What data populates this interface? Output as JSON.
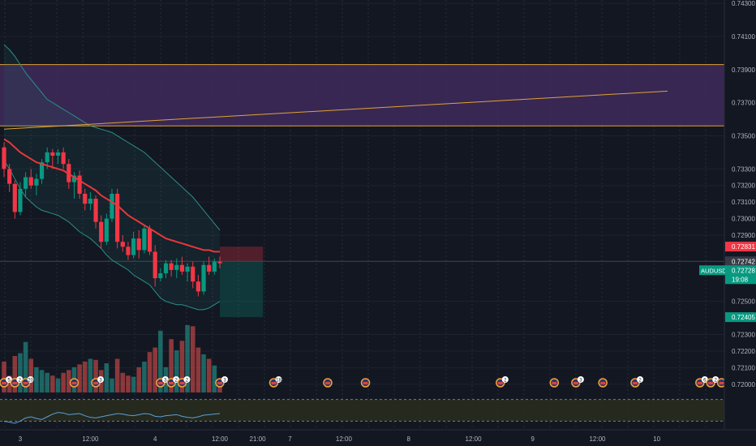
{
  "chart_data": {
    "type": "candlestick",
    "symbol": "AUDUSD",
    "title": "",
    "price_axis": {
      "ylim": [
        0.7195,
        0.7432
      ],
      "ticks": [
        "0.74300",
        "0.74100",
        "0.73900",
        "0.73700",
        "0.73500",
        "0.73300",
        "0.73200",
        "0.73100",
        "0.73000",
        "0.72900",
        "0.72500",
        "0.72300",
        "0.72200",
        "0.72100",
        "0.72000"
      ]
    },
    "time_axis": {
      "labels": [
        "3",
        "12:00",
        "4",
        "12:00",
        "21:00",
        "7",
        "12:00",
        "8",
        "12:00",
        "9",
        "12:00",
        "10"
      ],
      "label_index": [
        3,
        16,
        28,
        40,
        47,
        53,
        63,
        75,
        87,
        98,
        110,
        121
      ]
    },
    "price_badges": [
      {
        "label": "",
        "value": "0.72831",
        "color": "#f23645"
      },
      {
        "label": "",
        "value": "0.72742",
        "color": "#363a45"
      },
      {
        "label": "AUDUSD",
        "value": "0.72728",
        "color": "#089981"
      },
      {
        "label": "",
        "value": "19:08",
        "color": "#089981"
      },
      {
        "label": "",
        "value": "0.72405",
        "color": "#089981"
      }
    ],
    "zone": {
      "top": 0.7393,
      "bottom": 0.7356,
      "color": "#3f2a5a"
    },
    "trendline": {
      "from": [
        0,
        0.7354
      ],
      "to": [
        123,
        0.7377
      ]
    },
    "position": {
      "start": 40,
      "end": 48,
      "entry": 0.72742,
      "stop": 0.72831,
      "target": 0.72405
    },
    "candles": [
      [
        0.7343,
        0.7346,
        0.7325,
        0.733
      ],
      [
        0.733,
        0.7333,
        0.7316,
        0.7321
      ],
      [
        0.7321,
        0.7323,
        0.73,
        0.7304
      ],
      [
        0.7304,
        0.7322,
        0.7302,
        0.7318
      ],
      [
        0.7318,
        0.7328,
        0.7313,
        0.7325
      ],
      [
        0.7325,
        0.733,
        0.7318,
        0.732
      ],
      [
        0.732,
        0.7327,
        0.7314,
        0.7324
      ],
      [
        0.7324,
        0.7336,
        0.7321,
        0.7334
      ],
      [
        0.7334,
        0.7343,
        0.733,
        0.734
      ],
      [
        0.734,
        0.7342,
        0.733,
        0.7338
      ],
      [
        0.7338,
        0.7342,
        0.7333,
        0.734
      ],
      [
        0.734,
        0.7343,
        0.733,
        0.7333
      ],
      [
        0.7333,
        0.7336,
        0.7318,
        0.7322
      ],
      [
        0.7322,
        0.7328,
        0.7312,
        0.7326
      ],
      [
        0.7326,
        0.7329,
        0.7312,
        0.7315
      ],
      [
        0.7315,
        0.7318,
        0.7305,
        0.7309
      ],
      [
        0.7309,
        0.7316,
        0.7305,
        0.7312
      ],
      [
        0.7312,
        0.7314,
        0.7294,
        0.7298
      ],
      [
        0.7298,
        0.7302,
        0.7282,
        0.7286
      ],
      [
        0.7286,
        0.7303,
        0.7284,
        0.73
      ],
      [
        0.73,
        0.7318,
        0.7298,
        0.7315
      ],
      [
        0.7315,
        0.7318,
        0.7282,
        0.7286
      ],
      [
        0.7286,
        0.729,
        0.728,
        0.7283
      ],
      [
        0.7283,
        0.7286,
        0.7275,
        0.7278
      ],
      [
        0.7278,
        0.7292,
        0.7276,
        0.7288
      ],
      [
        0.7288,
        0.7293,
        0.7276,
        0.7281
      ],
      [
        0.7281,
        0.7296,
        0.7279,
        0.7294
      ],
      [
        0.7294,
        0.7296,
        0.7278,
        0.728
      ],
      [
        0.728,
        0.7284,
        0.7259,
        0.7264
      ],
      [
        0.7264,
        0.727,
        0.7262,
        0.7267
      ],
      [
        0.7267,
        0.7275,
        0.7264,
        0.7273
      ],
      [
        0.7273,
        0.7275,
        0.7265,
        0.7269
      ],
      [
        0.7269,
        0.7276,
        0.7264,
        0.7272
      ],
      [
        0.7272,
        0.7277,
        0.7266,
        0.7268
      ],
      [
        0.7268,
        0.7273,
        0.7262,
        0.7271
      ],
      [
        0.7271,
        0.7274,
        0.7258,
        0.7262
      ],
      [
        0.7262,
        0.7266,
        0.7253,
        0.7256
      ],
      [
        0.7256,
        0.7274,
        0.7254,
        0.7272
      ],
      [
        0.7272,
        0.7277,
        0.7266,
        0.7268
      ],
      [
        0.7268,
        0.7276,
        0.7266,
        0.7274
      ],
      [
        0.7274,
        0.7277,
        0.727,
        0.7273
      ]
    ],
    "ma20": [
      0.7348,
      0.7346,
      0.7343,
      0.734,
      0.7338,
      0.7336,
      0.7334,
      0.7333,
      0.7332,
      0.7331,
      0.733,
      0.7329,
      0.7327,
      0.7325,
      0.7323,
      0.7321,
      0.7319,
      0.7317,
      0.7314,
      0.7312,
      0.731,
      0.7308,
      0.7305,
      0.7302,
      0.73,
      0.7298,
      0.7296,
      0.7294,
      0.7292,
      0.729,
      0.7288,
      0.7287,
      0.7286,
      0.7285,
      0.7284,
      0.7283,
      0.7282,
      0.7281,
      0.7281,
      0.728,
      0.728
    ],
    "bb_upper": [
      0.7405,
      0.7402,
      0.7398,
      0.7393,
      0.7388,
      0.7384,
      0.738,
      0.7376,
      0.7372,
      0.737,
      0.7368,
      0.7366,
      0.7364,
      0.7362,
      0.736,
      0.7358,
      0.7356,
      0.7355,
      0.7354,
      0.7353,
      0.7352,
      0.735,
      0.7348,
      0.7346,
      0.7344,
      0.7342,
      0.734,
      0.7337,
      0.7334,
      0.7331,
      0.7328,
      0.7325,
      0.7322,
      0.7319,
      0.7316,
      0.7313,
      0.7309,
      0.7305,
      0.7301,
      0.7297,
      0.7293
    ],
    "bb_lower": [
      0.7335,
      0.733,
      0.7324,
      0.7318,
      0.7313,
      0.731,
      0.7307,
      0.7305,
      0.7304,
      0.7303,
      0.7302,
      0.73,
      0.7298,
      0.7295,
      0.7292,
      0.729,
      0.7288,
      0.7285,
      0.7282,
      0.7278,
      0.7275,
      0.7273,
      0.7271,
      0.7269,
      0.7266,
      0.7264,
      0.7262,
      0.726,
      0.7256,
      0.7252,
      0.725,
      0.7249,
      0.7248,
      0.7248,
      0.7247,
      0.7246,
      0.7245,
      0.7245,
      0.7246,
      0.7248,
      0.725
    ],
    "volume": [
      55,
      30,
      65,
      70,
      90,
      60,
      45,
      40,
      35,
      30,
      25,
      35,
      40,
      45,
      50,
      55,
      60,
      58,
      40,
      52,
      25,
      60,
      35,
      30,
      28,
      45,
      55,
      72,
      80,
      110,
      45,
      95,
      75,
      92,
      120,
      118,
      80,
      68,
      60,
      48,
      20
    ],
    "volume_max": 130,
    "rsi": {
      "levels": [
        "50.0",
        "25.0"
      ],
      "ylim": [
        20,
        80
      ],
      "values": [
        30,
        28,
        26,
        30,
        36,
        38,
        35,
        33,
        38,
        43,
        46,
        45,
        42,
        43,
        44,
        40,
        37,
        36,
        38,
        40,
        42,
        44,
        43,
        41,
        40,
        42,
        44,
        43,
        39,
        38,
        40,
        41,
        42,
        39,
        37,
        36,
        38,
        41,
        42,
        43,
        44
      ]
    },
    "events": [
      {
        "x": 0,
        "kind": "flag",
        "count": "5"
      },
      {
        "x": 2,
        "kind": "flag",
        "count": "2"
      },
      {
        "x": 4,
        "kind": "flag",
        "count": "20"
      },
      {
        "x": 13,
        "kind": "flag",
        "count": ""
      },
      {
        "x": 17,
        "kind": "flag",
        "count": "3"
      },
      {
        "x": 29,
        "kind": "flag",
        "count": "3"
      },
      {
        "x": 31,
        "kind": "flag",
        "count": "2"
      },
      {
        "x": 33,
        "kind": "flag",
        "count": "2"
      },
      {
        "x": 40,
        "kind": "flag",
        "count": "3"
      },
      {
        "x": 50,
        "kind": "flag",
        "count": "18"
      },
      {
        "x": 60,
        "kind": "flag",
        "count": ""
      },
      {
        "x": 67,
        "kind": "flag",
        "count": ""
      },
      {
        "x": 92,
        "kind": "flag",
        "count": "2"
      },
      {
        "x": 102,
        "kind": "flag",
        "count": ""
      },
      {
        "x": 106,
        "kind": "flag",
        "count": "3"
      },
      {
        "x": 111,
        "kind": "flag",
        "count": ""
      },
      {
        "x": 117,
        "kind": "flag",
        "count": "2"
      },
      {
        "x": 129,
        "kind": "flag",
        "count": "6"
      },
      {
        "x": 131,
        "kind": "flag",
        "count": "2"
      },
      {
        "x": 133,
        "kind": "flag",
        "count": ""
      },
      {
        "x": 136,
        "kind": "flag",
        "count": ""
      }
    ],
    "colors": {
      "up": "#089981",
      "down": "#f23645",
      "ma": "#e8373c",
      "band": "#2a8f88",
      "zone_line": "#e0a23b",
      "trend": "#e0a23b"
    }
  }
}
